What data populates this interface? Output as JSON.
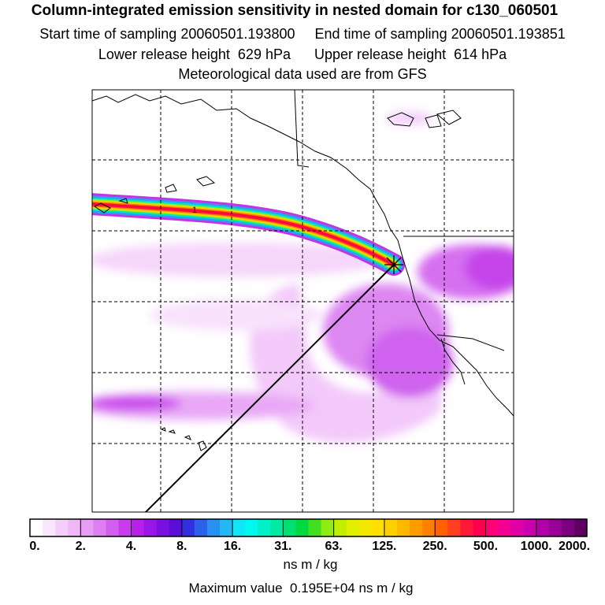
{
  "header": {
    "title": "Column-integrated emission sensitivity in nested domain for c130_060501",
    "start_label": "Start time of sampling 20060501.193800",
    "end_label": "End time of sampling 20060501.193851",
    "lower_label": "Lower release height  629 hPa",
    "upper_label": "Upper release height  614 hPa",
    "met_label": "Meteorological data used are from GFS"
  },
  "map": {
    "contour_label": "1",
    "release_marker": "release-point-star-icon",
    "land_outline_color": "#000000",
    "grid_color": "#000000"
  },
  "colorbar": {
    "tick_labels": [
      "0.",
      "2.",
      "4.",
      "8.",
      "16.",
      "31.",
      "63.",
      "125.",
      "250.",
      "500.",
      "1000.",
      "2000."
    ],
    "colors": [
      [
        "#ffffff",
        "#fbe7fd",
        "#f5cffb",
        "#efb7f9"
      ],
      [
        "#e79df6",
        "#dd7ff3",
        "#d35ff0",
        "#c83aec"
      ],
      [
        "#b821e8",
        "#9a16e6",
        "#7a10e0",
        "#5a0cd8"
      ],
      [
        "#3030e0",
        "#2a60ea",
        "#2890f0",
        "#22b8f5"
      ],
      [
        "#10e6f6",
        "#00f8ee",
        "#00f0c8",
        "#00eaa0"
      ],
      [
        "#00e070",
        "#00d840",
        "#40e020",
        "#90ec10"
      ],
      [
        "#c0f000",
        "#e0f000",
        "#f4e800",
        "#ffe000"
      ],
      [
        "#ffd000",
        "#ffb800",
        "#ff9c00",
        "#ff8000"
      ],
      [
        "#ff6000",
        "#ff4020",
        "#ff1838",
        "#ff0050"
      ],
      [
        "#ff0078",
        "#f20094",
        "#e000a8",
        "#c800b0"
      ],
      [
        "#b000a8",
        "#980098",
        "#7a0080",
        "#5c0062"
      ]
    ],
    "units": "ns m / kg"
  },
  "footer": {
    "max_value": "Maximum value  0.195E+04 ns m / kg"
  }
}
